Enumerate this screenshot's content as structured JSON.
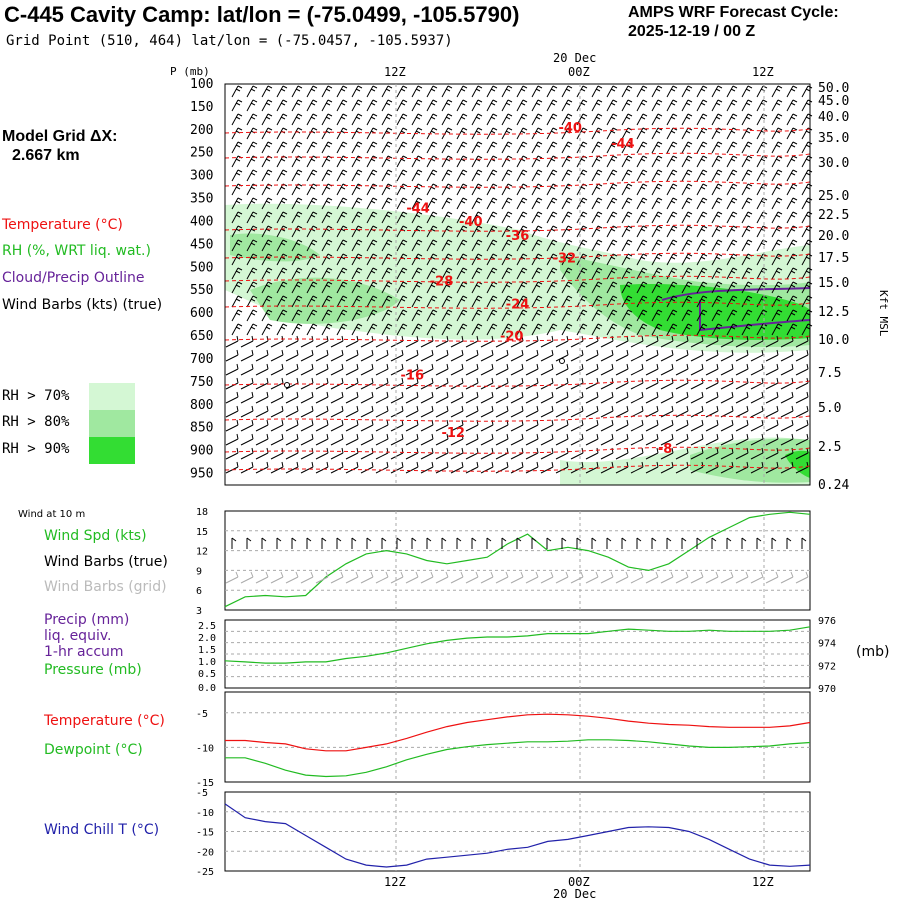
{
  "header": {
    "title": "C-445 Cavity Camp:  lat/lon = (-75.0499, -105.5790)",
    "subtitle": "Grid Point (510, 464) lat/lon = (-75.0457, -105.5937)",
    "cycle_line1": "AMPS WRF Forecast Cycle:",
    "cycle_line2": "2025-12-19 / 00  Z",
    "model_grid_label": "Model Grid ΔX:",
    "model_grid_value": "2.667 km"
  },
  "colors": {
    "temp": "#ee1111",
    "rh": "#22bb22",
    "cloud": "#662299",
    "windchill": "#2222aa",
    "grid": "#aaaaaa",
    "rh70": "#d4f7d4",
    "rh80": "#a0e8a0",
    "rh90": "#33dd33"
  },
  "legend": {
    "temperature": "Temperature (°C)",
    "rh": "RH (%, WRT liq. wat.)",
    "cloud": "Cloud/Precip Outline",
    "wind": "Wind Barbs (kts) (true)",
    "rh70": "RH > 70%",
    "rh80": "RH > 80%",
    "rh90": "RH > 90%"
  },
  "time_axis": {
    "top_labels": [
      "12Z",
      "00Z",
      "12Z"
    ],
    "bottom_labels": [
      "12Z",
      "00Z",
      "12Z"
    ],
    "date_label": "20 Dec"
  },
  "chart_data": [
    {
      "type": "heatmap",
      "name": "cross-section",
      "ylabel_left": "P (mb)",
      "ylabel_right": "Kft MSL",
      "pressure_ticks": [
        "100",
        "150",
        "200",
        "250",
        "300",
        "350",
        "400",
        "450",
        "500",
        "550",
        "600",
        "650",
        "700",
        "750",
        "800",
        "850",
        "900",
        "950"
      ],
      "height_ticks": [
        "50.0",
        "45.0",
        "40.0",
        "35.0",
        "30.0",
        "25.0",
        "22.5",
        "20.0",
        "17.5",
        "15.0",
        "12.5",
        "10.0",
        "7.5",
        "5.0",
        "2.5",
        "0.24"
      ],
      "temperature_labels": [
        {
          "text": "-40",
          "t": 0.57,
          "p": 205
        },
        {
          "text": "-44",
          "t": 0.66,
          "p": 240
        },
        {
          "text": "-44",
          "t": 0.31,
          "p": 380
        },
        {
          "text": "-40",
          "t": 0.4,
          "p": 410
        },
        {
          "text": "-36",
          "t": 0.48,
          "p": 440
        },
        {
          "text": "-32",
          "t": 0.56,
          "p": 490
        },
        {
          "text": "-28",
          "t": 0.35,
          "p": 540
        },
        {
          "text": "-24",
          "t": 0.48,
          "p": 590
        },
        {
          "text": "-20",
          "t": 0.47,
          "p": 660
        },
        {
          "text": "-16",
          "t": 0.3,
          "p": 745
        },
        {
          "text": "-12",
          "t": 0.37,
          "p": 870
        },
        {
          "text": "-8",
          "t": 0.74,
          "p": 905
        }
      ]
    },
    {
      "type": "line",
      "name": "wind-10m",
      "panel_title": "Wind at 10 m",
      "label_spd": "Wind Spd (kts)",
      "label_barbs_true": "Wind Barbs (true)",
      "label_barbs_grid": "Wind Barbs (grid)",
      "yticks": [
        "18",
        "15",
        "12",
        "9",
        "6",
        "3"
      ],
      "ylim": [
        3,
        18
      ],
      "series": [
        {
          "name": "Wind Spd",
          "values": [
            3.5,
            5,
            5.2,
            5,
            5.2,
            8,
            10,
            11.5,
            12,
            11.5,
            10.5,
            10,
            10.5,
            11,
            13,
            14.5,
            12,
            12.5,
            12,
            11,
            9.5,
            9,
            10,
            12,
            14,
            15.5,
            17,
            17.5,
            17.8,
            17.5
          ]
        }
      ]
    },
    {
      "type": "line",
      "name": "precip-pressure",
      "label_precip": "Precip (mm)",
      "label_liq": "liq. equiv.",
      "label_accum": "1-hr accum",
      "label_pressure": "Pressure (mb)",
      "yticks_left": [
        "2.5",
        "2.0",
        "1.5",
        "1.0",
        "0.5",
        "0.0"
      ],
      "yticks_right": [
        "976",
        "974",
        "972",
        "970"
      ],
      "right_unit": "(mb)",
      "ylim": [
        970,
        976
      ],
      "series": [
        {
          "name": "Pressure",
          "values": [
            972.4,
            972.3,
            972.2,
            972.2,
            972.3,
            972.3,
            972.6,
            972.8,
            973.1,
            973.5,
            973.9,
            974.2,
            974.4,
            974.5,
            974.5,
            974.6,
            974.8,
            974.8,
            974.8,
            975,
            975.2,
            975.1,
            975,
            975,
            975.1,
            975,
            975,
            975,
            975.1,
            975.4
          ]
        }
      ]
    },
    {
      "type": "line",
      "name": "temp-dewpoint",
      "label_temp": "Temperature (°C)",
      "label_dew": "Dewpoint (°C)",
      "yticks": [
        "-5",
        "-10",
        "-15"
      ],
      "ylim": [
        -15,
        -2
      ],
      "series": [
        {
          "name": "Temperature",
          "values": [
            -9,
            -9,
            -9.3,
            -9.5,
            -10.2,
            -10.5,
            -10.5,
            -10,
            -9.5,
            -8.7,
            -7.8,
            -7,
            -6.4,
            -6,
            -5.6,
            -5.3,
            -5.2,
            -5.3,
            -5.5,
            -5.8,
            -6.2,
            -6.5,
            -6.7,
            -6.8,
            -7,
            -7.1,
            -7.1,
            -7.1,
            -6.9,
            -6.4
          ]
        },
        {
          "name": "Dewpoint",
          "values": [
            -11.5,
            -11.5,
            -12.3,
            -13.3,
            -14,
            -14.2,
            -14.1,
            -13.6,
            -12.8,
            -11.8,
            -11,
            -10.3,
            -9.9,
            -9.6,
            -9.4,
            -9.2,
            -9.2,
            -9.1,
            -8.9,
            -8.9,
            -9,
            -9.2,
            -9.5,
            -9.8,
            -10,
            -10,
            -9.9,
            -9.8,
            -9.5,
            -9.3
          ]
        }
      ]
    },
    {
      "type": "line",
      "name": "wind-chill",
      "label": "Wind Chill T (°C)",
      "yticks": [
        "-5",
        "-10",
        "-15",
        "-20",
        "-25"
      ],
      "ylim": [
        -25,
        -5
      ],
      "series": [
        {
          "name": "Wind Chill",
          "values": [
            -8,
            -11.5,
            -12.5,
            -13,
            -16,
            -19,
            -22,
            -23.5,
            -24,
            -23.5,
            -22,
            -21.5,
            -21,
            -20.5,
            -19.5,
            -19,
            -17.5,
            -17,
            -16,
            -15,
            -14,
            -13.8,
            -14,
            -15,
            -17,
            -19.5,
            -22,
            -23.5,
            -23.8,
            -23.5
          ]
        }
      ]
    }
  ]
}
